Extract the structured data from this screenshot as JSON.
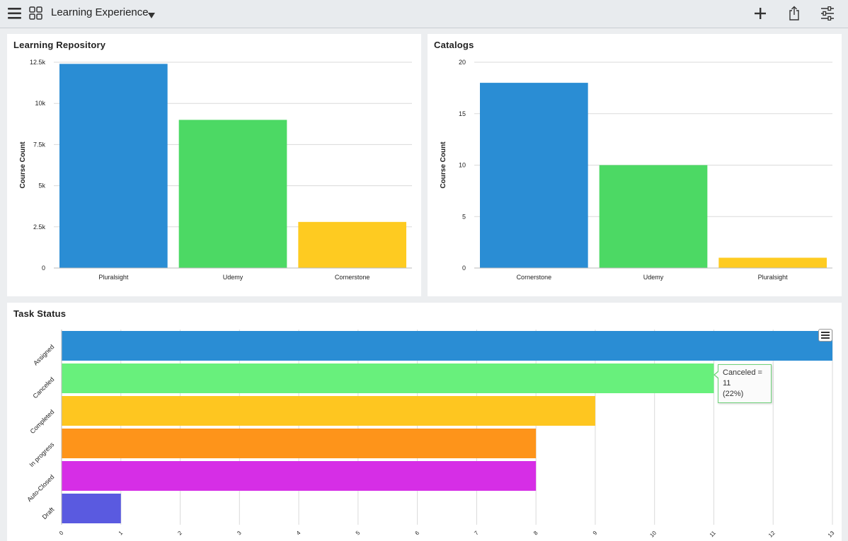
{
  "header": {
    "title": "Learning Experience",
    "icons": {
      "menu": "hamburger-icon",
      "apps": "grid-icon",
      "dropdown": "caret-down-icon",
      "add": "plus-icon",
      "share": "share-icon",
      "settings": "sliders-icon"
    }
  },
  "panels": {
    "repository": {
      "title": "Learning Repository"
    },
    "catalogs": {
      "title": "Catalogs"
    },
    "tasks": {
      "title": "Task Status"
    }
  },
  "tooltip": {
    "line1": "Canceled = 11",
    "line2": "(22%)"
  },
  "chart_data": [
    {
      "type": "bar",
      "title": "Learning Repository",
      "ylabel": "Course Count",
      "categories": [
        "Pluralsight",
        "Udemy",
        "Cornerstone"
      ],
      "values": [
        12400,
        9000,
        2800
      ],
      "colors": [
        "#2a8dd4",
        "#4cd964",
        "#fecb21"
      ],
      "ylim": [
        0,
        12500
      ],
      "yticks": [
        0,
        2500,
        5000,
        7500,
        10000,
        12500
      ],
      "ytick_labels": [
        "0",
        "2.5k",
        "5k",
        "7.5k",
        "10k",
        "12.5k"
      ],
      "grid": true
    },
    {
      "type": "bar",
      "title": "Catalogs",
      "ylabel": "Course Count",
      "categories": [
        "Cornerstone",
        "Udemy",
        "Pluralsight"
      ],
      "values": [
        18,
        10,
        1
      ],
      "colors": [
        "#2a8dd4",
        "#4cd964",
        "#fecb21"
      ],
      "ylim": [
        0,
        20
      ],
      "yticks": [
        0,
        5,
        10,
        15,
        20
      ],
      "ytick_labels": [
        "0",
        "5",
        "10",
        "15",
        "20"
      ],
      "grid": true
    },
    {
      "type": "bar",
      "orientation": "horizontal",
      "title": "Task Status",
      "categories": [
        "Assigned",
        "Canceled",
        "Completed",
        "In progress",
        "Auto-Closed",
        "Draft"
      ],
      "values": [
        13,
        11,
        9,
        8,
        8,
        1
      ],
      "colors": [
        "#2a8dd4",
        "#68f07c",
        "#fec620",
        "#fe941a",
        "#d62ee6",
        "#5a5ae0"
      ],
      "xlim": [
        0,
        13
      ],
      "xticks": [
        0,
        1,
        2,
        3,
        4,
        5,
        6,
        7,
        8,
        9,
        10,
        11,
        12,
        13
      ],
      "grid": true
    }
  ]
}
